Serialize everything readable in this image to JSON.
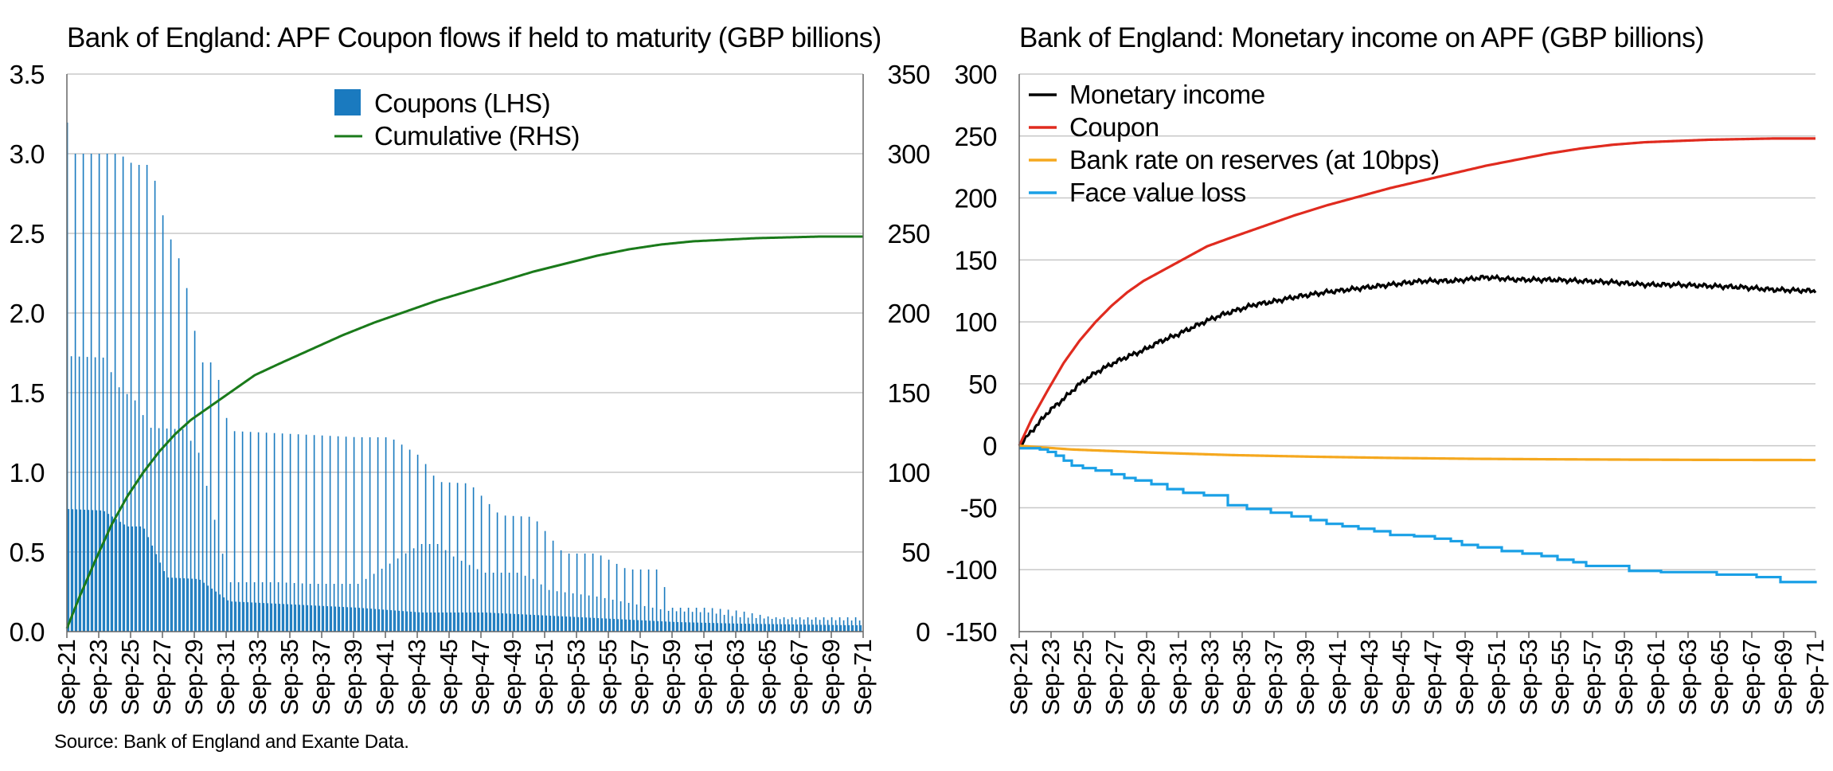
{
  "source": "Source: Bank of England and Exante Data.",
  "chart_data": [
    {
      "type": "bar",
      "title": "Bank of England: APF Coupon flows if held to maturity (GBP billions)",
      "x_range": [
        "Sep-21",
        "Sep-71"
      ],
      "x_tick_labels": [
        "Sep-21",
        "Sep-23",
        "Sep-25",
        "Sep-27",
        "Sep-29",
        "Sep-31",
        "Sep-33",
        "Sep-35",
        "Sep-37",
        "Sep-39",
        "Sep-41",
        "Sep-43",
        "Sep-45",
        "Sep-47",
        "Sep-49",
        "Sep-51",
        "Sep-53",
        "Sep-55",
        "Sep-57",
        "Sep-59",
        "Sep-61",
        "Sep-63",
        "Sep-65",
        "Sep-67",
        "Sep-69",
        "Sep-71"
      ],
      "y_left": {
        "ticks": [
          0.0,
          0.5,
          1.0,
          1.5,
          2.0,
          2.5,
          3.0,
          3.5
        ],
        "tick_labels": [
          "0.0",
          "0.5",
          "1.0",
          "1.5",
          "2.0",
          "2.5",
          "3.0",
          "3.5"
        ],
        "range": [
          0,
          3.5
        ]
      },
      "y_right": {
        "ticks": [
          0,
          50,
          100,
          150,
          200,
          250,
          300,
          350
        ],
        "tick_labels": [
          "0",
          "50",
          "100",
          "150",
          "200",
          "250",
          "300",
          "350"
        ],
        "range": [
          0,
          350
        ]
      },
      "legend_position": "top-center",
      "grid": true,
      "series": [
        {
          "name": "Coupons (LHS)",
          "type": "bar",
          "axis": "left",
          "color": "#1a7abf",
          "note": "Monthly coupon bars; periodic pattern of tall, medium and short bars",
          "envelopes": {
            "peak": [
              [
                2021.7,
                3.23
              ],
              [
                2021.9,
                3.0
              ],
              [
                2022.5,
                3.0
              ],
              [
                2023,
                3.0
              ],
              [
                2024,
                3.0
              ],
              [
                2025,
                3.0
              ],
              [
                2025.9,
                2.93
              ],
              [
                2027,
                2.93
              ],
              [
                2027.9,
                2.54
              ],
              [
                2029,
                2.28
              ],
              [
                2030.1,
                1.69
              ],
              [
                2031,
                1.69
              ],
              [
                2031.9,
                1.26
              ],
              [
                2034,
                1.25
              ],
              [
                2036,
                1.24
              ],
              [
                2038,
                1.23
              ],
              [
                2040,
                1.22
              ],
              [
                2042,
                1.22
              ],
              [
                2043.9,
                1.1
              ],
              [
                2045,
                0.94
              ],
              [
                2047,
                0.93
              ],
              [
                2048.9,
                0.73
              ],
              [
                2051,
                0.72
              ],
              [
                2052.9,
                0.49
              ],
              [
                2055,
                0.49
              ],
              [
                2056.9,
                0.39
              ],
              [
                2059,
                0.39
              ],
              [
                2059.5,
                0.15
              ],
              [
                2062,
                0.15
              ],
              [
                2064,
                0.13
              ],
              [
                2066,
                0.09
              ],
              [
                2068,
                0.09
              ],
              [
                2071,
                0.09
              ]
            ],
            "mid": [
              [
                2021.7,
                1.73
              ],
              [
                2024,
                1.72
              ],
              [
                2025,
                1.53
              ],
              [
                2026,
                1.45
              ],
              [
                2026.9,
                1.28
              ],
              [
                2029,
                1.27
              ],
              [
                2030,
                1.12
              ],
              [
                2031.9,
                0.31
              ],
              [
                2035,
                0.31
              ],
              [
                2037,
                0.3
              ],
              [
                2040,
                0.3
              ],
              [
                2043.9,
                0.55
              ],
              [
                2045,
                0.55
              ],
              [
                2046,
                0.47
              ],
              [
                2047.9,
                0.37
              ],
              [
                2050,
                0.37
              ],
              [
                2051,
                0.33
              ],
              [
                2052,
                0.26
              ],
              [
                2055,
                0.22
              ],
              [
                2058,
                0.16
              ],
              [
                2059.5,
                0.13
              ],
              [
                2062,
                0.12
              ],
              [
                2064,
                0.09
              ],
              [
                2066,
                0.08
              ],
              [
                2071,
                0.07
              ]
            ],
            "low": [
              [
                2021.7,
                0.77
              ],
              [
                2024,
                0.76
              ],
              [
                2025.5,
                0.66
              ],
              [
                2026.5,
                0.66
              ],
              [
                2028,
                0.34
              ],
              [
                2030,
                0.33
              ],
              [
                2031.9,
                0.19
              ],
              [
                2036,
                0.17
              ],
              [
                2040,
                0.15
              ],
              [
                2044,
                0.12
              ],
              [
                2048,
                0.12
              ],
              [
                2052,
                0.1
              ],
              [
                2056,
                0.08
              ],
              [
                2060,
                0.06
              ],
              [
                2064,
                0.05
              ],
              [
                2071,
                0.04
              ]
            ]
          }
        },
        {
          "name": "Cumulative (RHS)",
          "type": "line",
          "axis": "right",
          "color": "#1a7a1a",
          "points": [
            [
              2021.7,
              2
            ],
            [
              2022.5,
              22
            ],
            [
              2023.5,
              45
            ],
            [
              2024.5,
              67
            ],
            [
              2025.5,
              85
            ],
            [
              2026.5,
              100
            ],
            [
              2027.5,
              113
            ],
            [
              2028.5,
              124
            ],
            [
              2029.5,
              133
            ],
            [
              2030.5,
              140
            ],
            [
              2031.5,
              147
            ],
            [
              2032.5,
              154
            ],
            [
              2033.5,
              161
            ],
            [
              2035,
              168
            ],
            [
              2037,
              177
            ],
            [
              2039,
              186
            ],
            [
              2041,
              194
            ],
            [
              2043,
              201
            ],
            [
              2045,
              208
            ],
            [
              2047,
              214
            ],
            [
              2049,
              220
            ],
            [
              2051,
              226
            ],
            [
              2053,
              231
            ],
            [
              2055,
              236
            ],
            [
              2057,
              240
            ],
            [
              2059,
              243
            ],
            [
              2061,
              245
            ],
            [
              2063,
              246
            ],
            [
              2065,
              247
            ],
            [
              2067,
              247.5
            ],
            [
              2069,
              248
            ],
            [
              2071.7,
              248
            ]
          ]
        }
      ]
    },
    {
      "type": "line",
      "title": "Bank of England: Monetary income on APF (GBP billions)",
      "x_range": [
        "Sep-21",
        "Sep-71"
      ],
      "x_tick_labels": [
        "Sep-21",
        "Sep-23",
        "Sep-25",
        "Sep-27",
        "Sep-29",
        "Sep-31",
        "Sep-33",
        "Sep-35",
        "Sep-37",
        "Sep-39",
        "Sep-41",
        "Sep-43",
        "Sep-45",
        "Sep-47",
        "Sep-49",
        "Sep-51",
        "Sep-53",
        "Sep-55",
        "Sep-57",
        "Sep-59",
        "Sep-61",
        "Sep-63",
        "Sep-65",
        "Sep-67",
        "Sep-69",
        "Sep-71"
      ],
      "y": {
        "ticks": [
          -150,
          -100,
          -50,
          0,
          50,
          100,
          150,
          200,
          250,
          300
        ],
        "tick_labels": [
          "-150",
          "-100",
          "-50",
          "0",
          "50",
          "100",
          "150",
          "200",
          "250",
          "300"
        ],
        "range": [
          -150,
          300
        ]
      },
      "legend_position": "top-left",
      "grid": true,
      "series": [
        {
          "name": "Monetary income",
          "color": "#000000",
          "step": false,
          "points": [
            [
              2021.7,
              0
            ],
            [
              2022.5,
              12
            ],
            [
              2023.5,
              27
            ],
            [
              2024.5,
              38
            ],
            [
              2025.5,
              50
            ],
            [
              2026.5,
              59
            ],
            [
              2027.5,
              66
            ],
            [
              2028.5,
              72
            ],
            [
              2029.5,
              77
            ],
            [
              2030.5,
              84
            ],
            [
              2031.5,
              89
            ],
            [
              2032.5,
              95
            ],
            [
              2033.5,
              101
            ],
            [
              2034.5,
              106
            ],
            [
              2035.5,
              110
            ],
            [
              2036.5,
              114
            ],
            [
              2037.5,
              116
            ],
            [
              2039,
              120
            ],
            [
              2041,
              124
            ],
            [
              2043,
              127
            ],
            [
              2045,
              130
            ],
            [
              2047,
              133
            ],
            [
              2049,
              133
            ],
            [
              2051,
              136
            ],
            [
              2053,
              134
            ],
            [
              2055,
              134
            ],
            [
              2057,
              133
            ],
            [
              2059,
              132
            ],
            [
              2061,
              130
            ],
            [
              2063,
              130
            ],
            [
              2065,
              129
            ],
            [
              2067,
              128
            ],
            [
              2069,
              126
            ],
            [
              2071.7,
              125
            ]
          ]
        },
        {
          "name": "Coupon",
          "color": "#e02b1f",
          "step": false,
          "points": [
            [
              2021.7,
              0
            ],
            [
              2022.5,
              22
            ],
            [
              2023.5,
              45
            ],
            [
              2024.5,
              67
            ],
            [
              2025.5,
              85
            ],
            [
              2026.5,
              100
            ],
            [
              2027.5,
              113
            ],
            [
              2028.5,
              124
            ],
            [
              2029.5,
              133
            ],
            [
              2030.5,
              140
            ],
            [
              2031.5,
              147
            ],
            [
              2032.5,
              154
            ],
            [
              2033.5,
              161
            ],
            [
              2035,
              168
            ],
            [
              2037,
              177
            ],
            [
              2039,
              186
            ],
            [
              2041,
              194
            ],
            [
              2043,
              201
            ],
            [
              2045,
              208
            ],
            [
              2047,
              214
            ],
            [
              2049,
              220
            ],
            [
              2051,
              226
            ],
            [
              2053,
              231
            ],
            [
              2055,
              236
            ],
            [
              2057,
              240
            ],
            [
              2059,
              243
            ],
            [
              2061,
              245
            ],
            [
              2063,
              246
            ],
            [
              2065,
              247
            ],
            [
              2067,
              247.5
            ],
            [
              2069,
              248
            ],
            [
              2071.7,
              248
            ]
          ]
        },
        {
          "name": "Bank rate on reserves (at 10bps)",
          "color": "#f5a81f",
          "step": false,
          "points": [
            [
              2021.7,
              0
            ],
            [
              2025,
              -3
            ],
            [
              2030,
              -5.5
            ],
            [
              2035,
              -7.5
            ],
            [
              2040,
              -8.8
            ],
            [
              2045,
              -9.8
            ],
            [
              2050,
              -10.5
            ],
            [
              2055,
              -10.9
            ],
            [
              2060,
              -11.2
            ],
            [
              2065,
              -11.4
            ],
            [
              2071.7,
              -11.5
            ]
          ]
        },
        {
          "name": "Face value loss",
          "color": "#1aa0e6",
          "step": true,
          "points": [
            [
              2021.7,
              -2
            ],
            [
              2023,
              -3
            ],
            [
              2023.5,
              -5
            ],
            [
              2024,
              -8
            ],
            [
              2024.5,
              -12
            ],
            [
              2025,
              -16
            ],
            [
              2025.7,
              -18
            ],
            [
              2026.5,
              -20
            ],
            [
              2027.5,
              -23
            ],
            [
              2028.3,
              -26
            ],
            [
              2029,
              -28
            ],
            [
              2030,
              -31
            ],
            [
              2031,
              -35
            ],
            [
              2032,
              -38
            ],
            [
              2033.3,
              -40
            ],
            [
              2034.8,
              -48
            ],
            [
              2036,
              -51
            ],
            [
              2037.5,
              -54
            ],
            [
              2038.8,
              -57
            ],
            [
              2040,
              -60
            ],
            [
              2041,
              -63
            ],
            [
              2042,
              -65
            ],
            [
              2043,
              -67
            ],
            [
              2044,
              -69
            ],
            [
              2045,
              -72
            ],
            [
              2046.5,
              -73
            ],
            [
              2047.8,
              -75
            ],
            [
              2048.8,
              -77
            ],
            [
              2049.5,
              -80
            ],
            [
              2050.5,
              -82
            ],
            [
              2052,
              -85
            ],
            [
              2053.3,
              -87
            ],
            [
              2054.5,
              -89
            ],
            [
              2055.5,
              -92
            ],
            [
              2056.5,
              -94
            ],
            [
              2057.3,
              -97
            ],
            [
              2060,
              -101
            ],
            [
              2062,
              -102
            ],
            [
              2065,
              -102
            ],
            [
              2065.5,
              -104
            ],
            [
              2068,
              -106
            ],
            [
              2069.5,
              -110
            ],
            [
              2071.7,
              -111
            ]
          ]
        }
      ]
    }
  ]
}
